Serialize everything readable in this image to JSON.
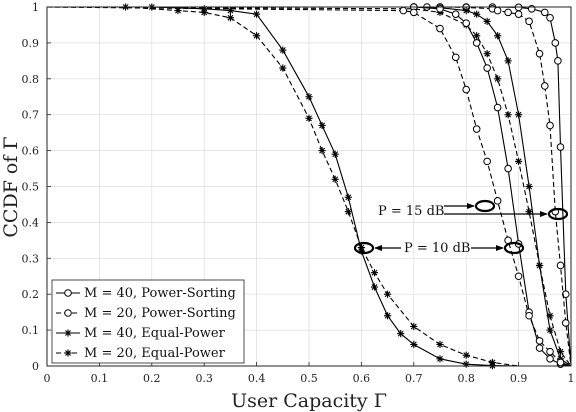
{
  "chart_data": {
    "type": "line",
    "xlabel": "User Capacity Γ",
    "ylabel": "CCDF of Γ",
    "xlim": [
      0,
      1
    ],
    "ylim": [
      0,
      1
    ],
    "xticks": [
      "0",
      "0.1",
      "0.2",
      "0.3",
      "0.4",
      "0.5",
      "0.6",
      "0.7",
      "0.8",
      "0.9",
      "1"
    ],
    "yticks": [
      "0",
      "0.1",
      "0.2",
      "0.3",
      "0.4",
      "0.5",
      "0.6",
      "0.7",
      "0.8",
      "0.9",
      "1"
    ],
    "grid": true,
    "legend_position": "bottom-left",
    "legend": [
      "M = 40, Power-Sorting",
      "M = 20, Power-Sorting",
      "M = 40, Equal-Power",
      "M = 20, Equal-Power"
    ],
    "annotations": [
      {
        "text": "P = 15 dB",
        "x": 0.635,
        "y": 0.485
      },
      {
        "text": "P = 10 dB",
        "x": 0.67,
        "y": 0.368
      }
    ],
    "series": [
      {
        "legend_index": 0,
        "style": "solid",
        "marker": "circle",
        "group": "P = 15 dB",
        "x": [
          0,
          0.7,
          0.725,
          0.75,
          0.8,
          0.85,
          0.9,
          0.925,
          0.95,
          0.96,
          0.97,
          0.975,
          0.98,
          0.99,
          1.0
        ],
        "y": [
          1,
          1,
          1,
          1,
          1,
          1,
          0.999,
          0.995,
          0.985,
          0.97,
          0.9,
          0.85,
          0.61,
          0.2,
          0
        ]
      },
      {
        "legend_index": 1,
        "style": "dashed",
        "marker": "circle",
        "group": "P = 15 dB",
        "x": [
          0,
          0.7,
          0.75,
          0.8,
          0.85,
          0.86,
          0.88,
          0.9,
          0.92,
          0.94,
          0.95,
          0.96,
          0.97,
          0.98,
          0.99,
          1.0
        ],
        "y": [
          1,
          1,
          1,
          0.999,
          0.995,
          0.99,
          0.985,
          0.98,
          0.96,
          0.87,
          0.78,
          0.67,
          0.43,
          0.28,
          0.12,
          0
        ]
      },
      {
        "legend_index": 2,
        "style": "solid",
        "marker": "star",
        "group": "P = 15 dB",
        "x": [
          0,
          0.7,
          0.75,
          0.8,
          0.82,
          0.84,
          0.86,
          0.88,
          0.9,
          0.92,
          0.94,
          0.96,
          0.98,
          1.0
        ],
        "y": [
          1,
          1,
          0.998,
          0.99,
          0.98,
          0.96,
          0.92,
          0.85,
          0.7,
          0.5,
          0.28,
          0.1,
          0.02,
          0
        ]
      },
      {
        "legend_index": 3,
        "style": "dashed",
        "marker": "star",
        "group": "P = 15 dB",
        "x": [
          0,
          0.7,
          0.75,
          0.8,
          0.82,
          0.84,
          0.86,
          0.88,
          0.9,
          0.92,
          0.94,
          0.96,
          0.98,
          1.0
        ],
        "y": [
          1,
          0.995,
          0.985,
          0.95,
          0.92,
          0.87,
          0.8,
          0.7,
          0.57,
          0.43,
          0.28,
          0.14,
          0.04,
          0
        ]
      },
      {
        "legend_index": 0,
        "style": "solid",
        "marker": "circle",
        "group": "P = 10 dB",
        "x": [
          0,
          0.7,
          0.75,
          0.78,
          0.8,
          0.82,
          0.84,
          0.86,
          0.88,
          0.9,
          0.92,
          0.94,
          0.96,
          0.98,
          1.0
        ],
        "y": [
          1,
          1,
          0.995,
          0.98,
          0.955,
          0.9,
          0.83,
          0.72,
          0.55,
          0.34,
          0.15,
          0.05,
          0.02,
          0.005,
          0
        ]
      },
      {
        "legend_index": 1,
        "style": "dashed",
        "marker": "circle",
        "group": "P = 10 dB",
        "x": [
          0,
          0.68,
          0.7,
          0.75,
          0.78,
          0.8,
          0.82,
          0.84,
          0.86,
          0.88,
          0.9,
          0.92,
          0.94,
          0.96,
          0.98,
          1.0
        ],
        "y": [
          1,
          0.99,
          0.985,
          0.94,
          0.86,
          0.77,
          0.66,
          0.57,
          0.46,
          0.35,
          0.25,
          0.14,
          0.07,
          0.04,
          0.01,
          0
        ]
      },
      {
        "legend_index": 2,
        "style": "solid",
        "marker": "star",
        "group": "P = 10 dB",
        "x": [
          0,
          0.2,
          0.3,
          0.35,
          0.4,
          0.45,
          0.5,
          0.525,
          0.55,
          0.575,
          0.6,
          0.625,
          0.65,
          0.675,
          0.7,
          0.75,
          0.8,
          0.85,
          0.9
        ],
        "y": [
          1,
          1,
          0.995,
          0.99,
          0.98,
          0.88,
          0.75,
          0.67,
          0.59,
          0.47,
          0.32,
          0.22,
          0.14,
          0.09,
          0.06,
          0.02,
          0.005,
          0.001,
          0
        ]
      },
      {
        "legend_index": 3,
        "style": "dashed",
        "marker": "star",
        "group": "P = 10 dB",
        "x": [
          0,
          0.15,
          0.25,
          0.3,
          0.35,
          0.4,
          0.45,
          0.5,
          0.525,
          0.55,
          0.575,
          0.6,
          0.625,
          0.65,
          0.7,
          0.75,
          0.8,
          0.85,
          0.9
        ],
        "y": [
          1,
          1,
          0.99,
          0.985,
          0.97,
          0.92,
          0.83,
          0.69,
          0.6,
          0.52,
          0.43,
          0.33,
          0.26,
          0.2,
          0.11,
          0.06,
          0.03,
          0.01,
          0
        ]
      }
    ]
  }
}
